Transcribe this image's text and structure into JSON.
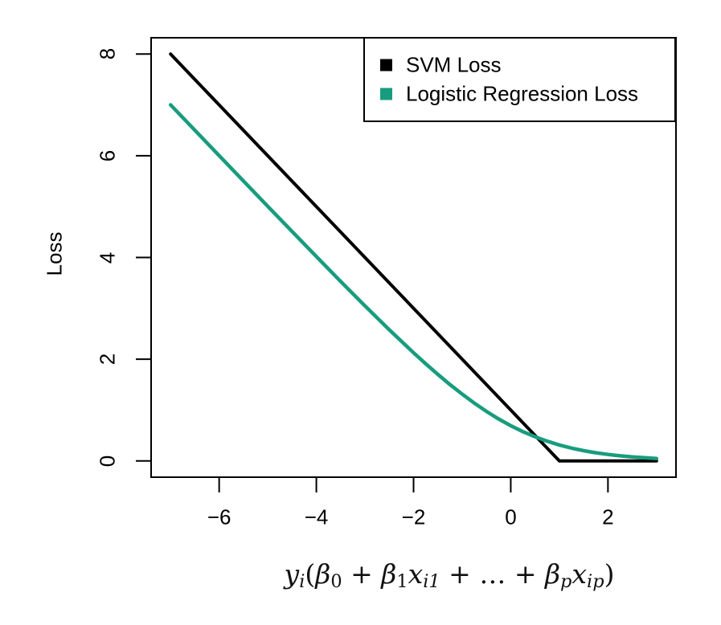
{
  "chart_data": {
    "type": "line",
    "title": "",
    "xlabel_plain": "y_i(beta_0 + beta_1*x_i1 + ... + beta_p*x_ip)",
    "xlabel_parts": [
      {
        "t": "y",
        "i": true
      },
      {
        "t": "i",
        "i": true,
        "s": true
      },
      {
        "t": "(",
        "i": false
      },
      {
        "t": "β",
        "i": true
      },
      {
        "t": "0",
        "s": true
      },
      {
        "t": " + "
      },
      {
        "t": "β",
        "i": true
      },
      {
        "t": "1",
        "s": true
      },
      {
        "t": "x",
        "i": true
      },
      {
        "t": "i1",
        "i": true,
        "s": true
      },
      {
        "t": " + … + "
      },
      {
        "t": "β",
        "i": true
      },
      {
        "t": "p",
        "i": true,
        "s": true
      },
      {
        "t": "x",
        "i": true
      },
      {
        "t": "ip",
        "i": true,
        "s": true
      },
      {
        "t": ")"
      }
    ],
    "ylabel": "Loss",
    "xlim": [
      -7.4,
      3.4
    ],
    "ylim": [
      -0.32,
      8.32
    ],
    "x_ticks": [
      -6,
      -4,
      -2,
      0,
      2
    ],
    "y_ticks": [
      0,
      2,
      4,
      6,
      8
    ],
    "grid": false,
    "legend_position": "topright",
    "series": [
      {
        "name": "SVM Loss",
        "color": "#000000",
        "line_width": 4,
        "x": [
          -7,
          1,
          3
        ],
        "y": [
          8,
          0,
          0
        ]
      },
      {
        "name": "Logistic Regression Loss",
        "color": "#189C7E",
        "line_width": 4.5,
        "x": [
          -7,
          -6.5,
          -6,
          -5.5,
          -5,
          -4.5,
          -4,
          -3.5,
          -3,
          -2.5,
          -2,
          -1.75,
          -1.5,
          -1.25,
          -1,
          -0.75,
          -0.5,
          -0.25,
          0,
          0.25,
          0.5,
          0.75,
          1,
          1.25,
          1.5,
          1.75,
          2,
          2.25,
          2.5,
          2.75,
          3
        ],
        "y": [
          7.0009,
          6.5015,
          6.0025,
          5.5041,
          5.0067,
          4.511,
          4.0182,
          3.5297,
          3.0486,
          2.5789,
          2.1269,
          1.9102,
          1.7014,
          1.5019,
          1.3133,
          1.1369,
          0.9741,
          0.8259,
          0.6931,
          0.5759,
          0.4741,
          0.3869,
          0.3133,
          0.2519,
          0.2014,
          0.1602,
          0.1269,
          0.1003,
          0.0789,
          0.062,
          0.0486
        ]
      }
    ]
  },
  "colors": {
    "background": "#ffffff",
    "axis": "#000000",
    "svm_line": "#000000",
    "logistic_line": "#189C7E"
  }
}
